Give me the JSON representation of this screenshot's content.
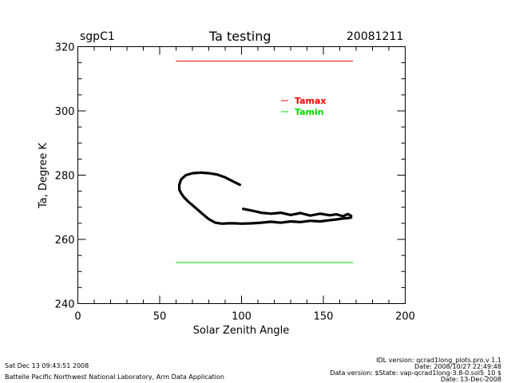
{
  "header": {
    "site": "sgpC1",
    "title": "Ta testing",
    "date": "20081211"
  },
  "footer": {
    "run_time": "Sat Dec 13 09:43:51 2008",
    "organization": "Battelle Pacific Northwest National Laboratory, Arm Data Application",
    "idl_version": "IDL version: qcrad1long_plots.pro,v 1.1",
    "code_date": "Date: 2008/10/27 22:49:48",
    "data_version": "Data version: $State: vap-qcrad1long-3.8-0.sol5_10 $",
    "data_date": "Date: 13-Dec-2008"
  },
  "chart_data": {
    "type": "line",
    "title": "Ta testing",
    "xlabel": "Solar Zenith Angle",
    "ylabel": "Ta, Degree K",
    "xlim": [
      0,
      200
    ],
    "ylim": [
      240,
      320
    ],
    "x_ticks": [
      0,
      50,
      100,
      150,
      200
    ],
    "y_ticks": [
      240,
      260,
      280,
      300,
      320
    ],
    "grid": false,
    "legend_position": "top-right",
    "series": [
      {
        "name": "Tamax",
        "color": "#ff0000",
        "x": [
          60,
          168
        ],
        "y": [
          315.5,
          315.5
        ]
      },
      {
        "name": "Tamin",
        "color": "#00dd00",
        "x": [
          60,
          168
        ],
        "y": [
          252.8,
          252.8
        ]
      },
      {
        "name": "",
        "color": "#000000",
        "x": [
          99,
          95,
          90,
          85,
          80,
          75,
          70,
          66,
          63,
          62,
          62,
          63,
          65,
          68,
          72,
          76,
          80,
          84,
          88,
          92,
          96,
          100,
          106,
          112,
          118,
          124,
          130,
          136,
          142,
          148,
          154,
          158,
          162,
          165,
          167
        ],
        "y": [
          277,
          278,
          279.3,
          280.2,
          280.6,
          280.8,
          280.6,
          280,
          278.6,
          277,
          275.5,
          274.4,
          273,
          271.5,
          269.8,
          268,
          266.3,
          265.2,
          264.9,
          265,
          265,
          264.9,
          265,
          265.2,
          265.5,
          265.2,
          265.6,
          265.4,
          265.8,
          265.6,
          266,
          266.2,
          266.5,
          266.6,
          266.8
        ]
      },
      {
        "name": "",
        "color": "#000000",
        "x": [
          101,
          106,
          112,
          118,
          124,
          130,
          136,
          142,
          148,
          154,
          158,
          162,
          165,
          167
        ],
        "y": [
          269.5,
          269,
          268.3,
          268,
          268.3,
          267.6,
          268.2,
          267.4,
          268,
          267.5,
          267.8,
          267.2,
          267.9,
          267.3
        ]
      }
    ]
  }
}
